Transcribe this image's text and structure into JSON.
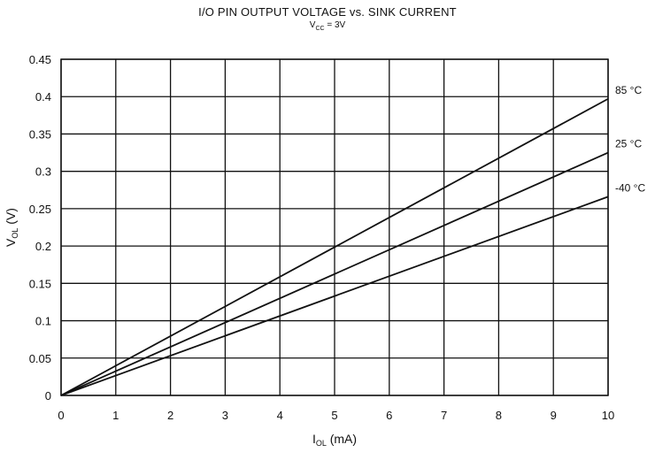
{
  "chart_data": {
    "type": "line",
    "title": "I/O PIN OUTPUT VOLTAGE vs. SINK CURRENT",
    "subtitle": {
      "main": "V",
      "sub": "CC",
      "rest": " = 3V"
    },
    "xlabel": {
      "main": "I",
      "sub": "OL",
      "rest": " (mA)"
    },
    "ylabel": {
      "main": "V",
      "sub": "OL",
      "rest": " (V)"
    },
    "xlim": [
      0,
      10
    ],
    "ylim": [
      0,
      0.45
    ],
    "x_ticks": [
      "0",
      "1",
      "2",
      "3",
      "4",
      "5",
      "6",
      "7",
      "8",
      "9",
      "10"
    ],
    "y_ticks": [
      "0",
      "0.05",
      "0.1",
      "0.15",
      "0.2",
      "0.25",
      "0.3",
      "0.35",
      "0.4",
      "0.45"
    ],
    "grid": true,
    "series": [
      {
        "name": "85 °C",
        "x": [
          0,
          10
        ],
        "y": [
          0,
          0.397
        ]
      },
      {
        "name": "25 °C",
        "x": [
          0,
          10
        ],
        "y": [
          0,
          0.325
        ]
      },
      {
        "name": "-40 °C",
        "x": [
          0,
          10
        ],
        "y": [
          0,
          0.266
        ]
      }
    ]
  }
}
